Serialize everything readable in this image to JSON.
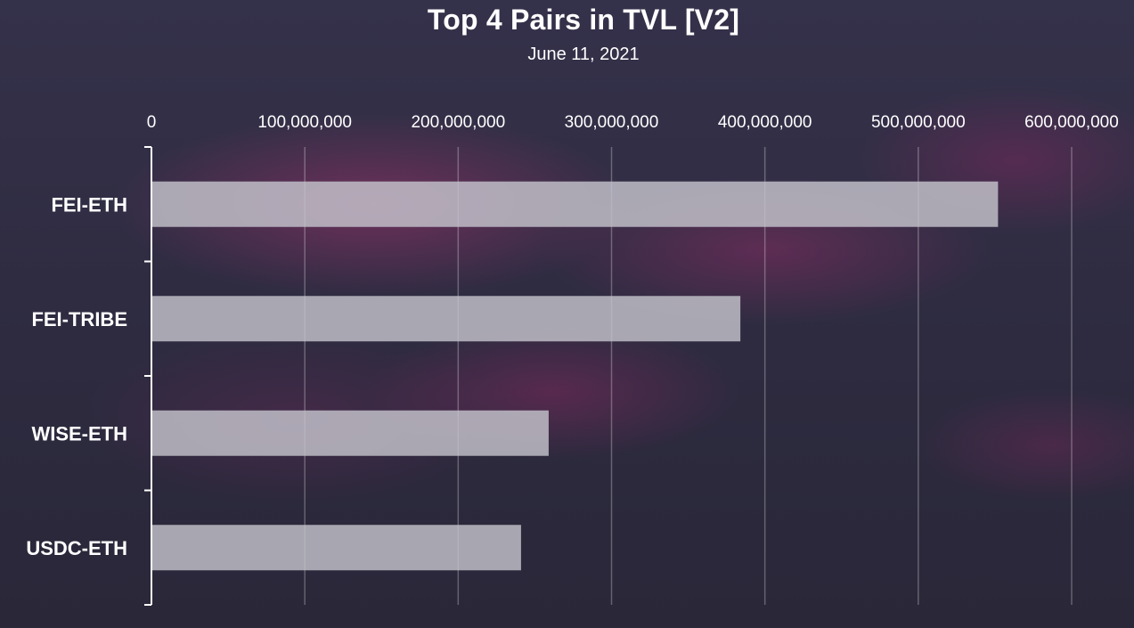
{
  "chart_data": {
    "type": "bar",
    "orientation": "horizontal",
    "title": "Top 4 Pairs in TVL [V2]",
    "subtitle": "June 11, 2021",
    "categories": [
      "FEI-ETH",
      "FEI-TRIBE",
      "WISE-ETH",
      "USDC-ETH"
    ],
    "values": [
      552000000,
      384000000,
      259000000,
      241000000
    ],
    "xlim": [
      0,
      600000000
    ],
    "x_ticks": [
      0,
      100000000,
      200000000,
      300000000,
      400000000,
      500000000,
      600000000
    ],
    "x_tick_labels": [
      "0",
      "100,000,000",
      "200,000,000",
      "300,000,000",
      "400,000,000",
      "500,000,000",
      "600,000,000"
    ],
    "x_axis_position": "top",
    "grid": true,
    "legend": "none",
    "bar_color": "#c4c3cc",
    "background_color": "#2e2b40"
  }
}
